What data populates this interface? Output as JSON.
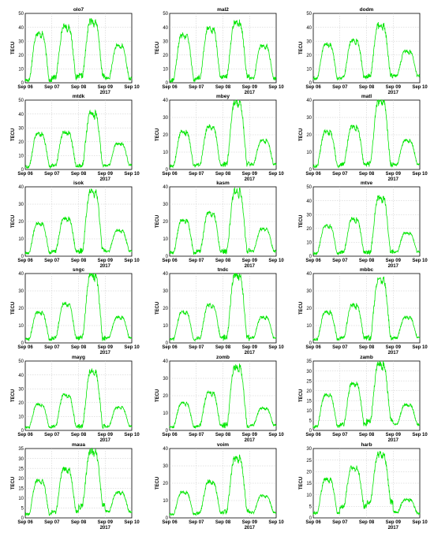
{
  "figure": {
    "line_color": "#00e600",
    "y_label": "TECU",
    "year_label": "2017",
    "x_ticks": [
      "Sep 06",
      "Sep 07",
      "Sep 08",
      "Sep 09",
      "Sep 10"
    ],
    "grid": true,
    "layout": "6 rows x 3 columns"
  },
  "chart_data": [
    {
      "type": "line",
      "title": "olo7",
      "ylabel": "TECU",
      "xlabel": "2017",
      "ylim": [
        0,
        50
      ],
      "yticks": [
        0,
        10,
        20,
        30,
        40,
        50
      ],
      "x": [
        "Sep 06",
        "Sep 07",
        "Sep 08",
        "Sep 09",
        "Sep 10"
      ],
      "peaks": [
        36,
        41,
        45,
        27
      ],
      "troughs": [
        2,
        4,
        5,
        3
      ]
    },
    {
      "type": "line",
      "title": "mal2",
      "ylabel": "TECU",
      "xlabel": "2017",
      "ylim": [
        0,
        50
      ],
      "yticks": [
        0,
        10,
        20,
        30,
        40,
        50
      ],
      "x": [
        "Sep 06",
        "Sep 07",
        "Sep 08",
        "Sep 09",
        "Sep 10"
      ],
      "peaks": [
        35,
        40,
        44,
        27
      ],
      "troughs": [
        2,
        4,
        5,
        3
      ]
    },
    {
      "type": "line",
      "title": "dodm",
      "ylabel": "TECU",
      "xlabel": "2017",
      "ylim": [
        0,
        50
      ],
      "yticks": [
        0,
        10,
        20,
        30,
        40,
        50
      ],
      "x": [
        "Sep 06",
        "Sep 07",
        "Sep 08",
        "Sep 09",
        "Sep 10"
      ],
      "peaks": [
        28,
        31,
        42,
        23
      ],
      "troughs": [
        3,
        4,
        5,
        5
      ]
    },
    {
      "type": "line",
      "title": "mtdk",
      "ylabel": "TECU",
      "xlabel": "2017",
      "ylim": [
        0,
        50
      ],
      "yticks": [
        0,
        10,
        20,
        30,
        40,
        50
      ],
      "x": [
        "Sep 06",
        "Sep 07",
        "Sep 08",
        "Sep 09",
        "Sep 10"
      ],
      "peaks": [
        26,
        27,
        41,
        19
      ],
      "troughs": [
        2,
        3,
        3,
        3
      ]
    },
    {
      "type": "line",
      "title": "mbey",
      "ylabel": "TECU",
      "xlabel": "2017",
      "ylim": [
        0,
        40
      ],
      "yticks": [
        0,
        10,
        20,
        30,
        40
      ],
      "x": [
        "Sep 06",
        "Sep 07",
        "Sep 08",
        "Sep 09",
        "Sep 10"
      ],
      "peaks": [
        22,
        25,
        39,
        17
      ],
      "troughs": [
        2,
        3,
        3,
        3
      ]
    },
    {
      "type": "line",
      "title": "matl",
      "ylabel": "TECU",
      "xlabel": "2017",
      "ylim": [
        0,
        40
      ],
      "yticks": [
        0,
        10,
        20,
        30,
        40
      ],
      "x": [
        "Sep 06",
        "Sep 07",
        "Sep 08",
        "Sep 09",
        "Sep 10"
      ],
      "peaks": [
        22,
        25,
        40,
        17
      ],
      "troughs": [
        2,
        3,
        3,
        3
      ]
    },
    {
      "type": "line",
      "title": "isok",
      "ylabel": "TECU",
      "xlabel": "2017",
      "ylim": [
        0,
        40
      ],
      "yticks": [
        0,
        10,
        20,
        30,
        40
      ],
      "x": [
        "Sep 06",
        "Sep 07",
        "Sep 08",
        "Sep 09",
        "Sep 10"
      ],
      "peaks": [
        19,
        22,
        38,
        15
      ],
      "troughs": [
        2,
        3,
        3,
        3
      ]
    },
    {
      "type": "line",
      "title": "kasm",
      "ylabel": "TECU",
      "xlabel": "2017",
      "ylim": [
        0,
        40
      ],
      "yticks": [
        0,
        10,
        20,
        30,
        40
      ],
      "x": [
        "Sep 06",
        "Sep 07",
        "Sep 08",
        "Sep 09",
        "Sep 10"
      ],
      "peaks": [
        21,
        25,
        38,
        16
      ],
      "troughs": [
        2,
        3,
        3,
        3
      ]
    },
    {
      "type": "line",
      "title": "mtve",
      "ylabel": "TECU",
      "xlabel": "2017",
      "ylim": [
        0,
        50
      ],
      "yticks": [
        0,
        10,
        20,
        30,
        40,
        50
      ],
      "x": [
        "Sep 06",
        "Sep 07",
        "Sep 08",
        "Sep 09",
        "Sep 10"
      ],
      "peaks": [
        22,
        27,
        43,
        17
      ],
      "troughs": [
        2,
        3,
        3,
        3
      ]
    },
    {
      "type": "line",
      "title": "sngc",
      "ylabel": "TECU",
      "xlabel": "2017",
      "ylim": [
        0,
        40
      ],
      "yticks": [
        0,
        10,
        20,
        30,
        40
      ],
      "x": [
        "Sep 06",
        "Sep 07",
        "Sep 08",
        "Sep 09",
        "Sep 10"
      ],
      "peaks": [
        18,
        23,
        40,
        15
      ],
      "troughs": [
        2,
        3,
        3,
        3
      ]
    },
    {
      "type": "line",
      "title": "tndc",
      "ylabel": "TECU",
      "xlabel": "2017",
      "ylim": [
        0,
        40
      ],
      "yticks": [
        0,
        10,
        20,
        30,
        40
      ],
      "x": [
        "Sep 06",
        "Sep 07",
        "Sep 08",
        "Sep 09",
        "Sep 10"
      ],
      "peaks": [
        18,
        22,
        40,
        15
      ],
      "troughs": [
        2,
        3,
        3,
        3
      ]
    },
    {
      "type": "line",
      "title": "mbbc",
      "ylabel": "TECU",
      "xlabel": "2017",
      "ylim": [
        0,
        40
      ],
      "yticks": [
        0,
        10,
        20,
        30,
        40
      ],
      "x": [
        "Sep 06",
        "Sep 07",
        "Sep 08",
        "Sep 09",
        "Sep 10"
      ],
      "peaks": [
        18,
        22,
        37,
        15
      ],
      "troughs": [
        2,
        3,
        3,
        3
      ]
    },
    {
      "type": "line",
      "title": "mayg",
      "ylabel": "TECU",
      "xlabel": "2017",
      "ylim": [
        0,
        50
      ],
      "yticks": [
        0,
        10,
        20,
        30,
        40,
        50
      ],
      "x": [
        "Sep 06",
        "Sep 07",
        "Sep 08",
        "Sep 09",
        "Sep 10"
      ],
      "peaks": [
        19,
        26,
        43,
        17
      ],
      "troughs": [
        2,
        3,
        3,
        3
      ]
    },
    {
      "type": "line",
      "title": "zomb",
      "ylabel": "TECU",
      "xlabel": "2017",
      "ylim": [
        0,
        40
      ],
      "yticks": [
        0,
        10,
        20,
        30,
        40
      ],
      "x": [
        "Sep 06",
        "Sep 07",
        "Sep 08",
        "Sep 09",
        "Sep 10"
      ],
      "peaks": [
        16,
        22,
        37,
        13
      ],
      "troughs": [
        2,
        3,
        3,
        3
      ]
    },
    {
      "type": "line",
      "title": "zamb",
      "ylabel": "TECU",
      "xlabel": "2017",
      "ylim": [
        0,
        35
      ],
      "yticks": [
        0,
        5,
        10,
        15,
        20,
        25,
        30,
        35
      ],
      "x": [
        "Sep 06",
        "Sep 07",
        "Sep 08",
        "Sep 09",
        "Sep 10"
      ],
      "peaks": [
        18,
        24,
        34,
        13
      ],
      "troughs": [
        2,
        3,
        5,
        3
      ]
    },
    {
      "type": "line",
      "title": "maua",
      "ylabel": "TECU",
      "xlabel": "2017",
      "ylim": [
        0,
        35
      ],
      "yticks": [
        0,
        5,
        10,
        15,
        20,
        25,
        30,
        35
      ],
      "x": [
        "Sep 06",
        "Sep 07",
        "Sep 08",
        "Sep 09",
        "Sep 10"
      ],
      "peaks": [
        19,
        25,
        34,
        13
      ],
      "troughs": [
        2,
        3,
        6,
        3
      ]
    },
    {
      "type": "line",
      "title": "voim",
      "ylabel": "TECU",
      "xlabel": "2017",
      "ylim": [
        0,
        40
      ],
      "yticks": [
        0,
        10,
        20,
        30,
        40
      ],
      "x": [
        "Sep 06",
        "Sep 07",
        "Sep 08",
        "Sep 09",
        "Sep 10"
      ],
      "peaks": [
        15,
        21,
        35,
        13
      ],
      "troughs": [
        2,
        3,
        4,
        3
      ]
    },
    {
      "type": "line",
      "title": "harb",
      "ylabel": "TECU",
      "xlabel": "2017",
      "ylim": [
        0,
        30
      ],
      "yticks": [
        0,
        5,
        10,
        15,
        20,
        25,
        30
      ],
      "x": [
        "Sep 06",
        "Sep 07",
        "Sep 08",
        "Sep 09",
        "Sep 10"
      ],
      "peaks": [
        17,
        22,
        28,
        8
      ],
      "troughs": [
        2,
        5,
        7,
        2
      ]
    }
  ]
}
